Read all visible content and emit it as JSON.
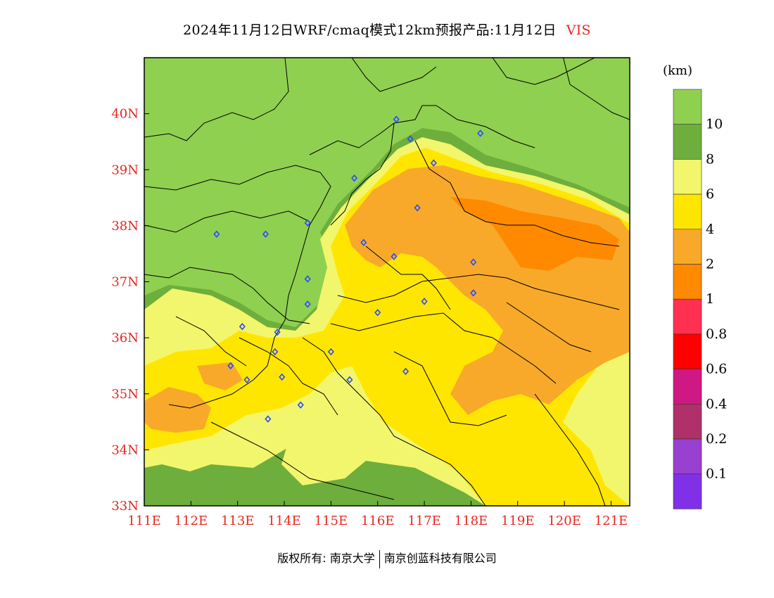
{
  "title": {
    "main": "2024年11月12日WRF/cmaq模式12km预报产品:11月12日",
    "variable": "VIS"
  },
  "colorbar": {
    "unit": "(km)",
    "bins": [
      {
        "color": "#8fd050",
        "label": "10"
      },
      {
        "color": "#6eae3c",
        "label": "8"
      },
      {
        "color": "#f2f66c",
        "label": "6"
      },
      {
        "color": "#ffe600",
        "label": "4"
      },
      {
        "color": "#f8a92a",
        "label": "2"
      },
      {
        "color": "#ff8a00",
        "label": "1"
      },
      {
        "color": "#ff3050",
        "label": "0.8"
      },
      {
        "color": "#ff0000",
        "label": "0.6"
      },
      {
        "color": "#d01884",
        "label": "0.4"
      },
      {
        "color": "#b0306a",
        "label": "0.2"
      },
      {
        "color": "#9840d0",
        "label": "0.1"
      },
      {
        "color": "#8030e6",
        "label": ""
      }
    ]
  },
  "axes": {
    "lon_min": 111,
    "lon_max": 121.4,
    "lat_min": 33,
    "lat_max": 41,
    "lon_ticks": [
      {
        "value": 111,
        "label": "111E"
      },
      {
        "value": 112,
        "label": "112E"
      },
      {
        "value": 113,
        "label": "113E"
      },
      {
        "value": 114,
        "label": "114E"
      },
      {
        "value": 115,
        "label": "115E"
      },
      {
        "value": 116,
        "label": "116E"
      },
      {
        "value": 117,
        "label": "117E"
      },
      {
        "value": 118,
        "label": "118E"
      },
      {
        "value": 119,
        "label": "119E"
      },
      {
        "value": 120,
        "label": "120E"
      },
      {
        "value": 121,
        "label": "121E"
      }
    ],
    "lat_ticks": [
      {
        "value": 33,
        "label": "33N"
      },
      {
        "value": 34,
        "label": "34N"
      },
      {
        "value": 35,
        "label": "35N"
      },
      {
        "value": 36,
        "label": "36N"
      },
      {
        "value": 37,
        "label": "37N"
      },
      {
        "value": 38,
        "label": "38N"
      },
      {
        "value": 39,
        "label": "39N"
      },
      {
        "value": 40,
        "label": "40N"
      }
    ]
  },
  "stations": [
    [
      116.4,
      39.9
    ],
    [
      116.7,
      39.55
    ],
    [
      118.2,
      39.65
    ],
    [
      117.2,
      39.12
    ],
    [
      115.5,
      38.85
    ],
    [
      114.5,
      38.05
    ],
    [
      116.85,
      38.32
    ],
    [
      115.7,
      37.7
    ],
    [
      116.35,
      37.45
    ],
    [
      112.55,
      37.85
    ],
    [
      113.6,
      37.85
    ],
    [
      114.5,
      37.05
    ],
    [
      114.5,
      36.6
    ],
    [
      116.0,
      36.45
    ],
    [
      117.0,
      36.65
    ],
    [
      118.05,
      36.8
    ],
    [
      118.05,
      37.35
    ],
    [
      113.1,
      36.2
    ],
    [
      113.85,
      36.1
    ],
    [
      113.8,
      35.75
    ],
    [
      115.0,
      35.75
    ],
    [
      112.85,
      35.5
    ],
    [
      113.2,
      35.25
    ],
    [
      113.95,
      35.3
    ],
    [
      115.4,
      35.25
    ],
    [
      116.6,
      35.4
    ],
    [
      114.35,
      34.8
    ],
    [
      113.65,
      34.55
    ]
  ],
  "footer": {
    "copyright": "版权所有: 南京大学",
    "company": "南京创蓝科技有限公司"
  }
}
